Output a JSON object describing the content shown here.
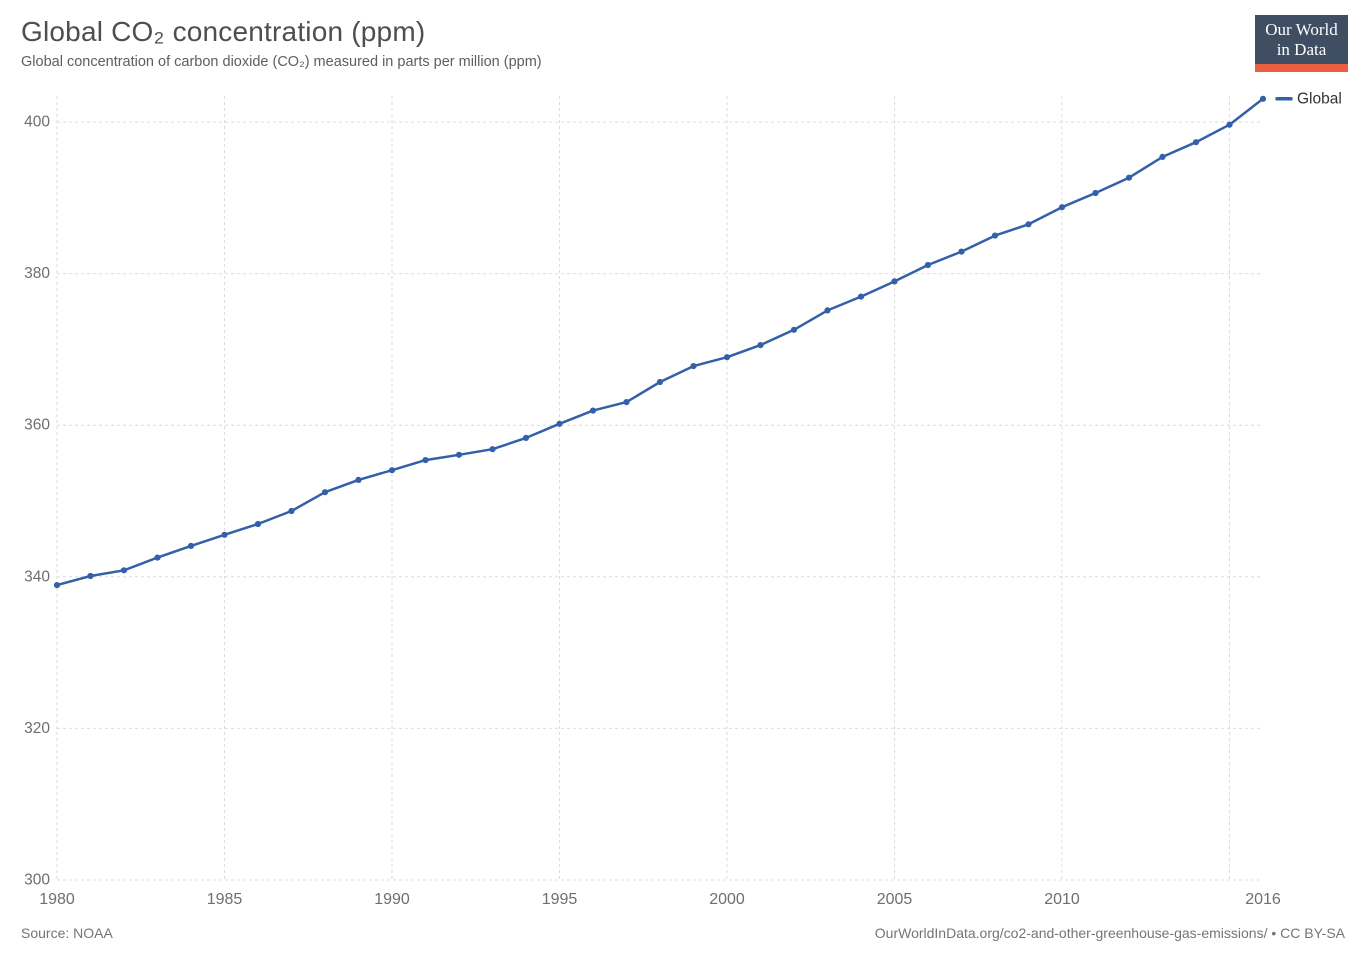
{
  "header": {
    "title": "Global CO₂ concentration (ppm)",
    "subtitle": "Global concentration of carbon dioxide (CO₂) measured in parts per million (ppm)",
    "logo": {
      "line1": "Our World",
      "line2": "in Data"
    }
  },
  "legend": {
    "label": "Global"
  },
  "footer": {
    "source": "Source: NOAA",
    "credit": "OurWorldInData.org/co2-and-other-greenhouse-gas-emissions/ • CC BY-SA"
  },
  "colors": {
    "line": "#3360A9",
    "grid": "#DBDBDB",
    "tick_label": "#6E6E6E",
    "legend_text": "#333333",
    "logo_bg": "#3F4E63",
    "logo_accent": "#EB5E41"
  },
  "chart_data": {
    "type": "line",
    "title": "Global CO₂ concentration (ppm)",
    "subtitle": "Global concentration of carbon dioxide (CO₂) measured in parts per million (ppm)",
    "xlabel": "",
    "ylabel": "",
    "x": [
      1980,
      1981,
      1982,
      1983,
      1984,
      1985,
      1986,
      1987,
      1988,
      1989,
      1990,
      1991,
      1992,
      1993,
      1994,
      1995,
      1996,
      1997,
      1998,
      1999,
      2000,
      2001,
      2002,
      2003,
      2004,
      2005,
      2006,
      2007,
      2008,
      2009,
      2010,
      2011,
      2012,
      2013,
      2014,
      2015,
      2016
    ],
    "series": [
      {
        "name": "Global",
        "color": "#3360A9",
        "values": [
          338.91,
          340.11,
          340.86,
          342.53,
          344.07,
          345.54,
          346.97,
          348.68,
          351.16,
          352.79,
          354.06,
          355.39,
          356.1,
          356.83,
          358.33,
          360.18,
          361.93,
          363.05,
          365.7,
          367.8,
          368.97,
          370.57,
          372.59,
          375.14,
          376.96,
          378.97,
          381.13,
          382.9,
          385.01,
          386.5,
          388.76,
          390.63,
          392.65,
          395.39,
          397.34,
          399.65,
          403.06
        ]
      }
    ],
    "x_ticks": [
      1980,
      1985,
      1990,
      1995,
      2000,
      2005,
      2010,
      2016
    ],
    "x_gridlines": [
      1980,
      1985,
      1990,
      1995,
      2000,
      2005,
      2010,
      2015
    ],
    "y_ticks": [
      300,
      320,
      340,
      360,
      380,
      400
    ],
    "xlim": [
      1980,
      2016
    ],
    "ylim": [
      300,
      403.7
    ],
    "grid": true,
    "grid_style": "dashed",
    "markers": true,
    "legend_position": "right-of-last-point",
    "source": "Source: NOAA"
  }
}
